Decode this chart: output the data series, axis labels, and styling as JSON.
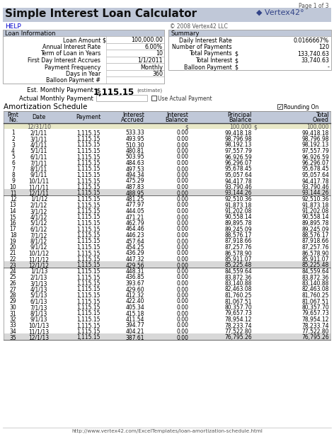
{
  "title": "Simple Interest Loan Calculator",
  "page_info": "Page 1 of 3",
  "help_text": "HELP",
  "copyright": "© 2008 Vertex42 LLC",
  "loan_info_label": "Loan Information",
  "summary_label": "Summary",
  "loan_fields": [
    [
      "Loan Amount",
      "$",
      "100,000.00"
    ],
    [
      "Annual Interest Rate",
      "",
      "6.00%"
    ],
    [
      "Term of Loan in Years",
      "",
      "10"
    ],
    [
      "First Day Interest Accrues",
      "",
      "1/1/2011"
    ],
    [
      "Payment Frequency",
      "",
      "Monthly"
    ],
    [
      "Days in Year",
      "",
      "360"
    ],
    [
      "Balloon Payment #",
      "",
      ""
    ]
  ],
  "summary_fields": [
    [
      "Daily Interest Rate",
      "",
      "0.0166667%"
    ],
    [
      "Number of Payments",
      "",
      "120"
    ],
    [
      "Total Payments",
      "$",
      "133,740.63"
    ],
    [
      "Total Interest",
      "$",
      "33,740.63"
    ],
    [
      "Balloon Payment",
      "$",
      "-"
    ]
  ],
  "est_monthly_payment_label": "Est. Monthly Payment",
  "est_monthly_payment_dollar": "$",
  "est_monthly_payment_value": "1,115.15",
  "est_monthly_payment_note": "(estimate)",
  "actual_monthly_payment_label": "Actual Monthly Payment",
  "use_actual_payment_label": "Use Actual Payment",
  "amortization_schedule_label": "Amortization Schedule",
  "rounding_on_label": "Rounding On",
  "table_headers": [
    "Pmt\nNo.",
    "Date",
    "Payment",
    "Interest\nAccrued",
    "Interest\nBalance",
    "Principal\nBalance",
    "Total\nOwed"
  ],
  "table_rows": [
    [
      1,
      "2/1/11",
      "1,115.15",
      "533.33",
      "0.00",
      "99,418.18",
      "99,418.18"
    ],
    [
      2,
      "3/1/11",
      "1,115.15",
      "493.95",
      "0.00",
      "98,796.98",
      "98,796.98"
    ],
    [
      3,
      "4/1/11",
      "1,115.15",
      "510.30",
      "0.00",
      "98,192.13",
      "98,192.13"
    ],
    [
      4,
      "5/1/11",
      "1,115.15",
      "480.81",
      "0.00",
      "97,557.79",
      "97,557.79"
    ],
    [
      5,
      "6/1/11",
      "1,115.15",
      "503.95",
      "0.00",
      "96,926.59",
      "96,926.59"
    ],
    [
      6,
      "7/1/11",
      "1,115.15",
      "484.63",
      "0.00",
      "96,296.07",
      "96,296.07"
    ],
    [
      7,
      "8/1/11",
      "1,115.15",
      "497.53",
      "0.00",
      "95,678.45",
      "95,678.45"
    ],
    [
      8,
      "9/1/11",
      "1,115.15",
      "494.34",
      "0.00",
      "95,057.64",
      "95,057.64"
    ],
    [
      9,
      "10/1/11",
      "1,115.15",
      "475.29",
      "0.00",
      "94,417.78",
      "94,417.78"
    ],
    [
      10,
      "11/1/11",
      "1,115.15",
      "487.83",
      "0.00",
      "93,790.46",
      "93,790.46"
    ],
    [
      11,
      "12/1/11",
      "1,115.15",
      "488.95",
      "0.00",
      "93,144.26",
      "93,144.26"
    ],
    [
      12,
      "1/1/12",
      "1,115.15",
      "481.25",
      "0.00",
      "92,510.36",
      "92,510.36"
    ],
    [
      13,
      "2/1/12",
      "1,115.15",
      "477.97",
      "0.00",
      "91,873.18",
      "91,873.18"
    ],
    [
      14,
      "3/1/12",
      "1,115.15",
      "444.05",
      "0.00",
      "91,202.08",
      "91,202.08"
    ],
    [
      15,
      "4/1/12",
      "1,115.15",
      "471.21",
      "0.00",
      "90,558.14",
      "90,558.14"
    ],
    [
      16,
      "5/1/12",
      "1,115.15",
      "462.79",
      "0.00",
      "89,895.78",
      "89,895.78"
    ],
    [
      17,
      "6/1/12",
      "1,115.15",
      "464.46",
      "0.00",
      "89,245.09",
      "89,245.09"
    ],
    [
      18,
      "7/1/12",
      "1,115.15",
      "446.23",
      "0.00",
      "88,576.17",
      "88,576.17"
    ],
    [
      19,
      "8/1/12",
      "1,115.15",
      "457.64",
      "0.00",
      "87,918.66",
      "87,918.66"
    ],
    [
      20,
      "9/1/12",
      "1,115.15",
      "454.25",
      "0.00",
      "87,257.76",
      "87,257.76"
    ],
    [
      21,
      "10/1/12",
      "1,115.15",
      "436.29",
      "0.00",
      "86,578.90",
      "86,578.90"
    ],
    [
      22,
      "11/1/12",
      "1,115.15",
      "447.32",
      "0.00",
      "85,911.07",
      "85,911.07"
    ],
    [
      23,
      "12/1/12",
      "1,115.15",
      "429.56",
      "0.00",
      "85,225.48",
      "85,225.48"
    ],
    [
      24,
      "1/1/13",
      "1,115.15",
      "448.31",
      "0.00",
      "84,559.64",
      "84,559.64"
    ],
    [
      25,
      "2/1/13",
      "1,115.15",
      "436.85",
      "0.00",
      "83,872.36",
      "83,872.36"
    ],
    [
      26,
      "3/1/13",
      "1,115.15",
      "393.67",
      "0.00",
      "83,140.88",
      "83,140.88"
    ],
    [
      27,
      "4/1/13",
      "1,115.15",
      "429.60",
      "0.00",
      "82,463.08",
      "82,463.08"
    ],
    [
      28,
      "5/1/13",
      "1,115.15",
      "412.32",
      "0.00",
      "81,760.25",
      "81,760.25"
    ],
    [
      29,
      "6/1/13",
      "1,115.15",
      "422.40",
      "0.00",
      "81,067.51",
      "81,067.51"
    ],
    [
      30,
      "7/1/13",
      "1,115.15",
      "405.34",
      "0.00",
      "80,357.70",
      "80,357.70"
    ],
    [
      31,
      "8/1/13",
      "1,115.15",
      "415.18",
      "0.00",
      "79,657.73",
      "79,657.73"
    ],
    [
      32,
      "9/1/13",
      "1,115.15",
      "411.54",
      "0.00",
      "78,954.12",
      "78,954.12"
    ],
    [
      33,
      "10/1/13",
      "1,115.15",
      "394.77",
      "0.00",
      "78,233.74",
      "78,233.74"
    ],
    [
      34,
      "11/1/13",
      "1,115.15",
      "404.21",
      "0.00",
      "77,522.80",
      "77,522.80"
    ],
    [
      35,
      "12/1/13",
      "1,115.15",
      "387.61",
      "0.00",
      "76,795.26",
      "76,795.26"
    ]
  ],
  "header_bg": "#c0c8d8",
  "section_bg": "#c0c8d8",
  "table_header_bg": "#c0c8d8",
  "init_row_bg": "#e8e8c8",
  "year_end_bg": "#d8d8d8",
  "footer_url": "http://www.vertex42.com/ExcelTemplates/loan-amortization-schedule.html",
  "bg_color": "#ffffff",
  "border_color": "#aaaaaa",
  "text_color": "#000000",
  "link_color": "#0000cc",
  "gray_text": "#555555"
}
